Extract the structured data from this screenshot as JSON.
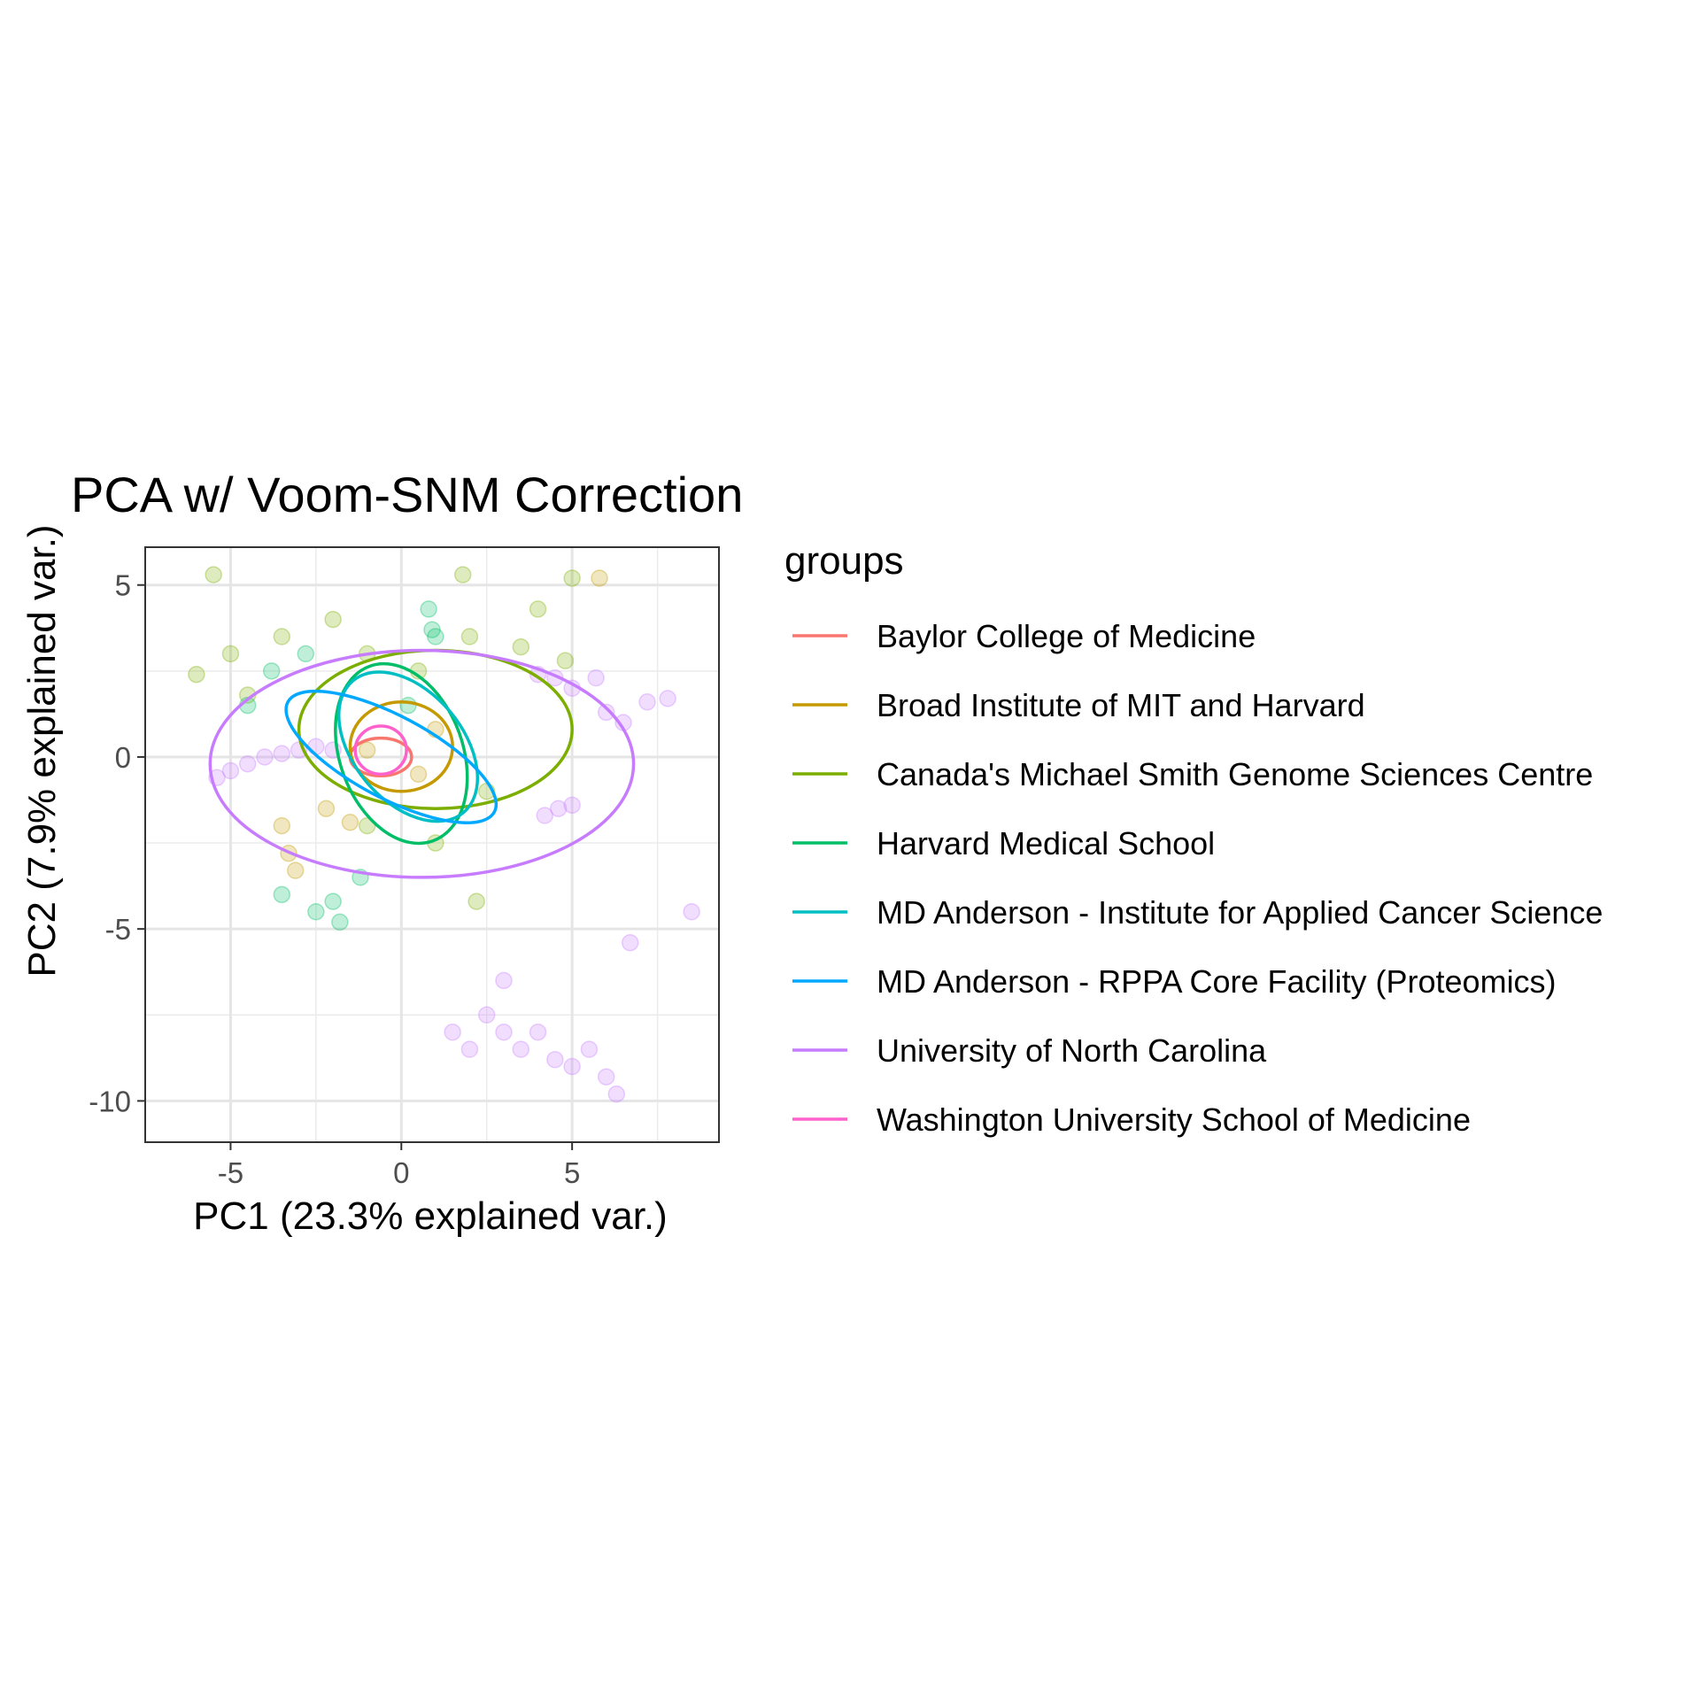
{
  "chart_data": {
    "type": "scatter",
    "title": "PCA w/ Voom-SNM Correction",
    "xlabel": "PC1 (23.3% explained var.)",
    "ylabel": "PC2 (7.9% explained var.)",
    "xlim": [
      -7.5,
      9.3
    ],
    "ylim": [
      -11.2,
      6.1
    ],
    "x_ticks": [
      -5,
      0,
      5
    ],
    "y_ticks": [
      5,
      0,
      -5,
      -10
    ],
    "x_tick_labels": [
      "-5",
      "0",
      "5"
    ],
    "y_tick_labels": [
      "5",
      "0",
      "-5",
      "-10"
    ],
    "grid": true,
    "legend": {
      "title": "groups",
      "placement": "right"
    },
    "series": [
      {
        "name": "Baylor College of Medicine",
        "color": "#F8766D",
        "ellipse": {
          "cx": -0.6,
          "cy": 0.0,
          "rx": 0.9,
          "ry": 0.55,
          "angle": 0
        }
      },
      {
        "name": "Broad Institute of MIT and Harvard",
        "color": "#C49A00",
        "points": [
          {
            "x": -3.5,
            "y": -2.0
          },
          {
            "x": -3.3,
            "y": -2.8
          },
          {
            "x": -3.1,
            "y": -3.3
          },
          {
            "x": -2.2,
            "y": -1.5
          },
          {
            "x": -1.5,
            "y": -1.9
          },
          {
            "x": 5.8,
            "y": 5.2
          },
          {
            "x": -1.0,
            "y": 0.2
          },
          {
            "x": 0.5,
            "y": -0.5
          },
          {
            "x": 1.0,
            "y": 0.8
          }
        ],
        "ellipse": {
          "cx": 0.0,
          "cy": 0.3,
          "rx": 1.5,
          "ry": 1.3,
          "angle": 0
        }
      },
      {
        "name": "Canada's Michael Smith Genome Sciences Centre",
        "color": "#7CAE00",
        "points": [
          {
            "x": -6.0,
            "y": 2.4
          },
          {
            "x": -5.0,
            "y": 3.0
          },
          {
            "x": -4.5,
            "y": 1.8
          },
          {
            "x": -3.5,
            "y": 3.5
          },
          {
            "x": -2.0,
            "y": 4.0
          },
          {
            "x": -1.0,
            "y": 3.0
          },
          {
            "x": 0.5,
            "y": 2.5
          },
          {
            "x": 2.0,
            "y": 3.5
          },
          {
            "x": 3.5,
            "y": 3.2
          },
          {
            "x": 4.0,
            "y": 4.3
          },
          {
            "x": 2.5,
            "y": -1.0
          },
          {
            "x": 1.0,
            "y": -2.5
          },
          {
            "x": -1.0,
            "y": -2.0
          },
          {
            "x": 2.2,
            "y": -4.2
          },
          {
            "x": 4.8,
            "y": 2.8
          },
          {
            "x": -5.5,
            "y": 5.3
          },
          {
            "x": 1.8,
            "y": 5.3
          },
          {
            "x": 5.0,
            "y": 5.2
          }
        ],
        "ellipse": {
          "cx": 1.0,
          "cy": 0.8,
          "rx": 4.0,
          "ry": 2.3,
          "angle": 0
        }
      },
      {
        "name": "Harvard Medical School",
        "color": "#00BE67",
        "points": [
          {
            "x": 0.8,
            "y": 4.3
          },
          {
            "x": 0.9,
            "y": 3.7
          },
          {
            "x": 1.0,
            "y": 3.5
          },
          {
            "x": -2.5,
            "y": -4.5
          },
          {
            "x": -2.0,
            "y": -4.2
          },
          {
            "x": -1.8,
            "y": -4.8
          },
          {
            "x": -3.5,
            "y": -4.0
          },
          {
            "x": -4.5,
            "y": 1.5
          },
          {
            "x": -3.8,
            "y": 2.5
          },
          {
            "x": -2.8,
            "y": 3.0
          },
          {
            "x": 0.2,
            "y": 1.5
          },
          {
            "x": -1.2,
            "y": -3.5
          }
        ],
        "ellipse": {
          "cx": 0.0,
          "cy": 0.1,
          "rx": 1.8,
          "ry": 2.7,
          "angle": -20
        }
      },
      {
        "name": "MD Anderson - Institute for Applied Cancer Science",
        "color": "#00BFC4",
        "ellipse": {
          "cx": 0.2,
          "cy": 0.3,
          "rx": 1.6,
          "ry": 2.5,
          "angle": -40
        }
      },
      {
        "name": "MD Anderson - RPPA Core Facility (Proteomics)",
        "color": "#00A9FF",
        "ellipse": {
          "cx": -0.3,
          "cy": 0.0,
          "rx": 1.2,
          "ry": 3.4,
          "angle": -62
        }
      },
      {
        "name": "University of North Carolina",
        "color": "#C77CFF",
        "points": [
          {
            "x": -5.4,
            "y": -0.6
          },
          {
            "x": -5.0,
            "y": -0.4
          },
          {
            "x": -4.5,
            "y": -0.2
          },
          {
            "x": -4.0,
            "y": 0.0
          },
          {
            "x": -3.5,
            "y": 0.1
          },
          {
            "x": -3.0,
            "y": 0.2
          },
          {
            "x": -2.5,
            "y": 0.3
          },
          {
            "x": -2.0,
            "y": 0.2
          },
          {
            "x": 4.0,
            "y": 2.4
          },
          {
            "x": 4.5,
            "y": 2.3
          },
          {
            "x": 5.0,
            "y": 2.0
          },
          {
            "x": 5.7,
            "y": 2.3
          },
          {
            "x": 6.0,
            "y": 1.3
          },
          {
            "x": 6.5,
            "y": 1.0
          },
          {
            "x": 7.2,
            "y": 1.6
          },
          {
            "x": 7.8,
            "y": 1.7
          },
          {
            "x": 4.2,
            "y": -1.7
          },
          {
            "x": 4.6,
            "y": -1.5
          },
          {
            "x": 5.0,
            "y": -1.4
          },
          {
            "x": 2.5,
            "y": -7.5
          },
          {
            "x": 3.0,
            "y": -8.0
          },
          {
            "x": 3.5,
            "y": -8.5
          },
          {
            "x": 4.0,
            "y": -8.0
          },
          {
            "x": 4.5,
            "y": -8.8
          },
          {
            "x": 5.0,
            "y": -9.0
          },
          {
            "x": 5.5,
            "y": -8.5
          },
          {
            "x": 6.0,
            "y": -9.3
          },
          {
            "x": 6.3,
            "y": -9.8
          },
          {
            "x": 2.0,
            "y": -8.5
          },
          {
            "x": 1.5,
            "y": -8.0
          },
          {
            "x": 8.5,
            "y": -4.5
          },
          {
            "x": 6.7,
            "y": -5.4
          },
          {
            "x": 3.0,
            "y": -6.5
          }
        ],
        "ellipse": {
          "cx": 0.6,
          "cy": -0.2,
          "rx": 6.2,
          "ry": 3.3,
          "angle": 0
        }
      },
      {
        "name": "Washington University School of Medicine",
        "color": "#FF61CC",
        "ellipse": {
          "cx": -0.6,
          "cy": 0.2,
          "rx": 0.75,
          "ry": 0.7,
          "angle": 0
        }
      }
    ]
  }
}
